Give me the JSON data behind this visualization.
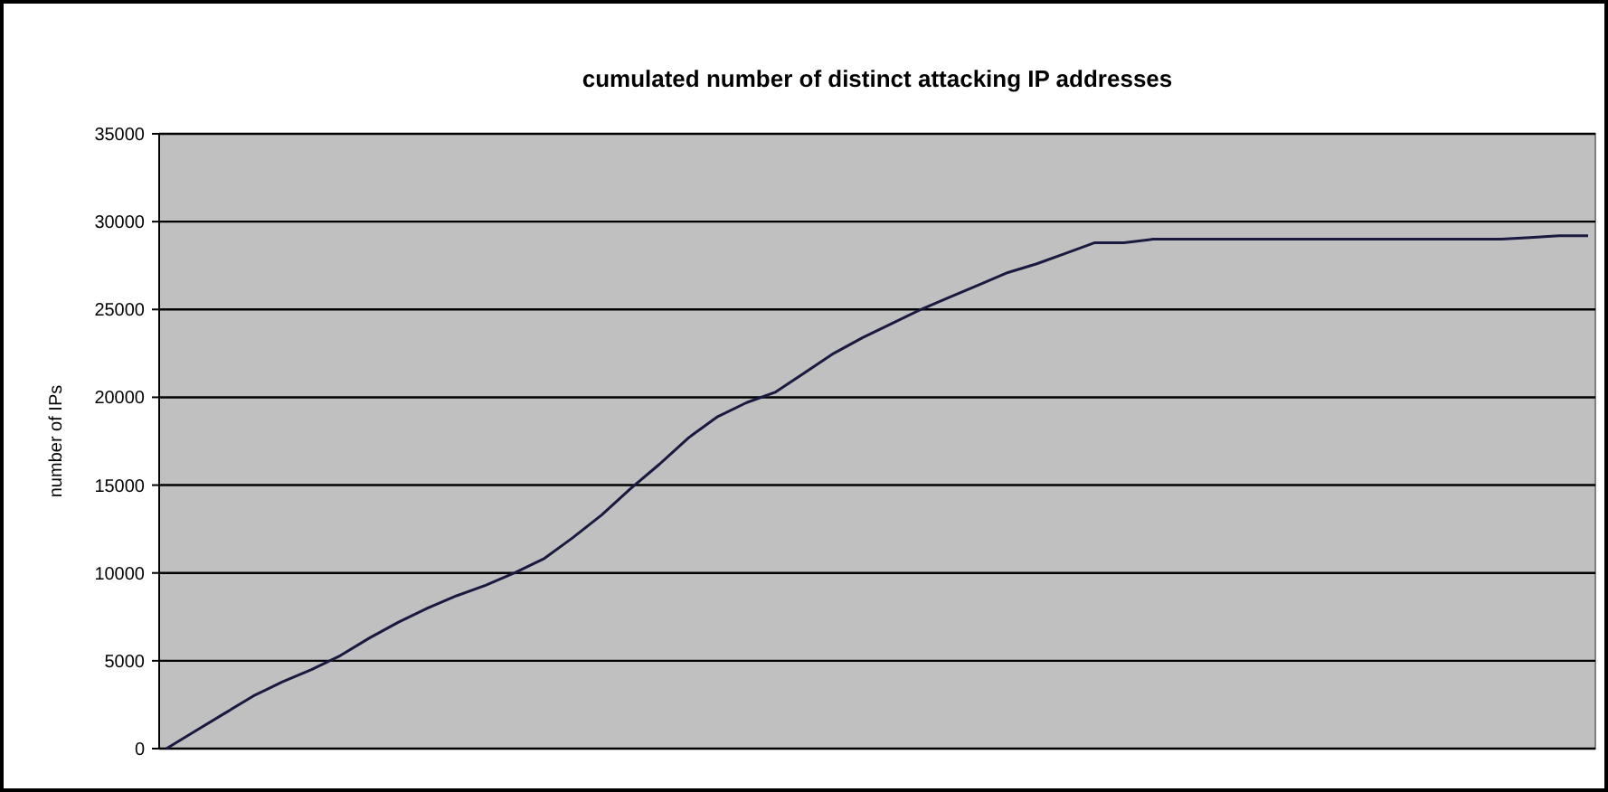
{
  "chart_data": {
    "type": "line",
    "title": "cumulated number of distinct attacking IP addresses",
    "ylabel": "number of IPs",
    "categories": [
      null,
      null,
      null,
      null,
      null,
      null,
      null,
      null,
      null,
      null,
      null,
      null,
      null,
      null,
      null,
      null,
      null,
      null,
      null,
      null,
      null,
      null,
      null,
      null,
      null,
      null,
      null,
      null,
      null,
      null,
      null,
      null,
      null,
      null,
      null,
      null,
      null,
      null,
      null,
      null,
      null,
      null,
      null,
      null,
      null,
      null,
      null,
      null,
      null,
      null
    ],
    "series": [
      {
        "color": "#1a1a40",
        "values": [
          0,
          1000,
          2000,
          3000,
          3800,
          4500,
          5300,
          6300,
          7200,
          8000,
          8700,
          9300,
          10000,
          10800,
          12000,
          13300,
          14800,
          16200,
          17700,
          18900,
          19700,
          20300,
          21400,
          22500,
          23400,
          24200,
          25000,
          25700,
          26400,
          27100,
          27600,
          28200,
          28800,
          28800,
          29000,
          29000,
          29000,
          29000,
          29000,
          29000,
          29000,
          29000,
          29000,
          29000,
          29000,
          29000,
          29000,
          29100,
          29200,
          29200
        ]
      }
    ],
    "ylim": [
      0,
      35000
    ],
    "yticks": [
      0,
      5000,
      10000,
      15000,
      20000,
      25000,
      30000,
      35000
    ],
    "grid": "y",
    "marker": "none",
    "line_style": "solid"
  }
}
